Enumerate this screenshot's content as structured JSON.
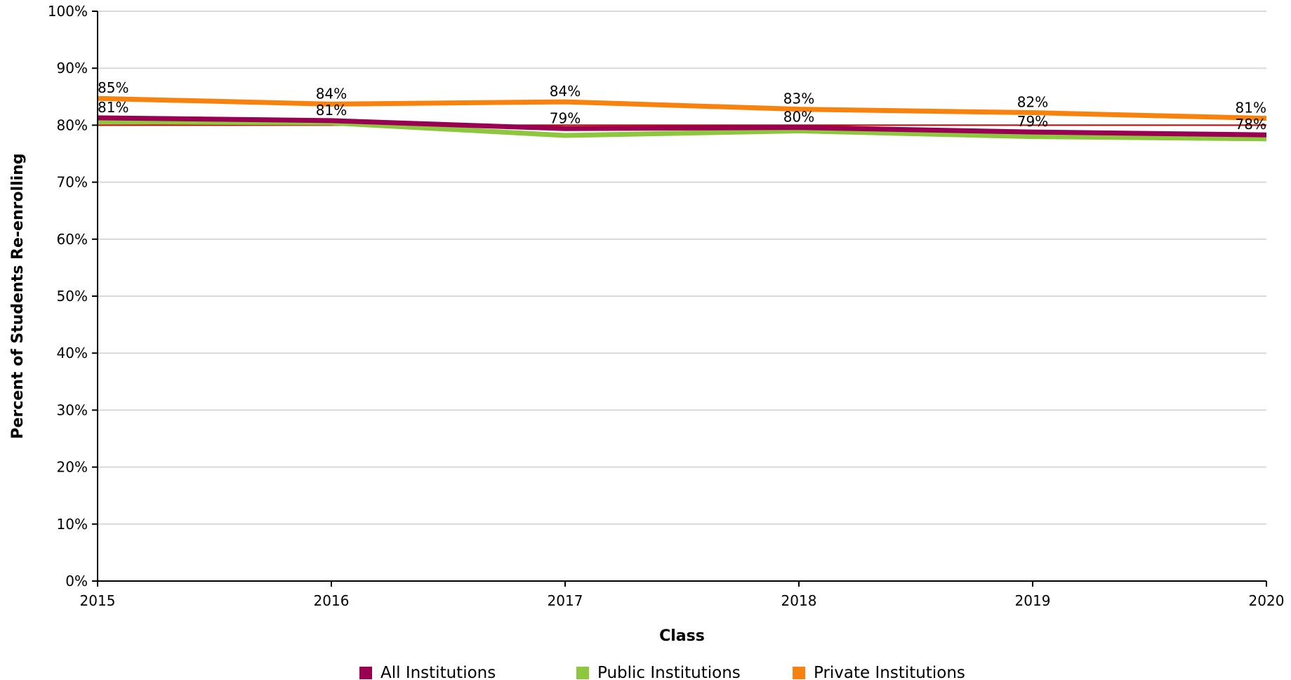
{
  "chart_data": {
    "type": "line",
    "title": "",
    "xlabel": "Class",
    "ylabel": "Percent of Students Re-enrolling",
    "x": [
      "2015",
      "2016",
      "2017",
      "2018",
      "2019",
      "2020"
    ],
    "ylim": [
      0,
      100
    ],
    "y_ticks": [
      "0%",
      "10%",
      "20%",
      "30%",
      "40%",
      "50%",
      "60%",
      "70%",
      "80%",
      "90%",
      "100%"
    ],
    "grid": true,
    "legend_position": "bottom",
    "reference_line": {
      "value": 80,
      "color": "#cc0000"
    },
    "series": [
      {
        "name": "All Institutions",
        "color": "#990052",
        "values": [
          81.3,
          80.8,
          79.4,
          79.6,
          78.8,
          78.3
        ],
        "labels": [
          "81%",
          "81%",
          "79%",
          "80%",
          "79%",
          "78%"
        ]
      },
      {
        "name": "Public Institutions",
        "color": "#8dc63f",
        "values": [
          80.6,
          80.4,
          78.2,
          79.0,
          78.0,
          77.6
        ],
        "labels": []
      },
      {
        "name": "Private Institutions",
        "color": "#f7820d",
        "values": [
          84.7,
          83.7,
          84.1,
          82.8,
          82.2,
          81.2
        ],
        "labels": [
          "85%",
          "84%",
          "84%",
          "83%",
          "82%",
          "81%"
        ]
      }
    ]
  }
}
